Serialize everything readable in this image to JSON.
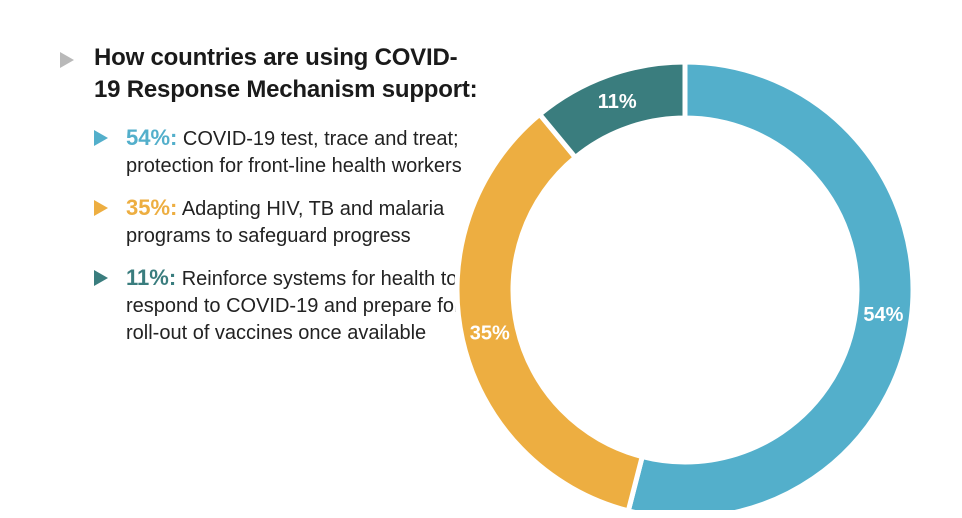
{
  "heading": "How countries are using COVID-19 Response Mechanism support:",
  "legend": [
    {
      "percent_label": "54%:",
      "description": "COVID-19 test, trace and treat; protection for front-line health workers",
      "color": "#53afcb"
    },
    {
      "percent_label": "35%:",
      "description": "Adapting HIV, TB and malaria programs to safeguard progress",
      "color": "#edae41"
    },
    {
      "percent_label": "11%:",
      "description": "Reinforce systems for health to respond to COVID-19 and prepare for roll-out of vaccines once available",
      "color": "#3a7d7e"
    }
  ],
  "colors": {
    "heading_marker": "#b9b9b9"
  },
  "chart_data": {
    "type": "pie",
    "variant": "donut",
    "title": "How countries are using COVID-19 Response Mechanism support:",
    "categories": [
      "COVID-19 test, trace and treat; protection for front-line health workers",
      "Adapting HIV, TB and malaria programs to safeguard progress",
      "Reinforce systems for health to respond to COVID-19 and prepare for roll-out of vaccines once available"
    ],
    "values": [
      54,
      35,
      11
    ],
    "labels": [
      "54%",
      "35%",
      "11%"
    ],
    "colors": [
      "#53afcb",
      "#edae41",
      "#3a7d7e"
    ],
    "legend_position": "left",
    "start": "top",
    "direction": "clockwise"
  }
}
